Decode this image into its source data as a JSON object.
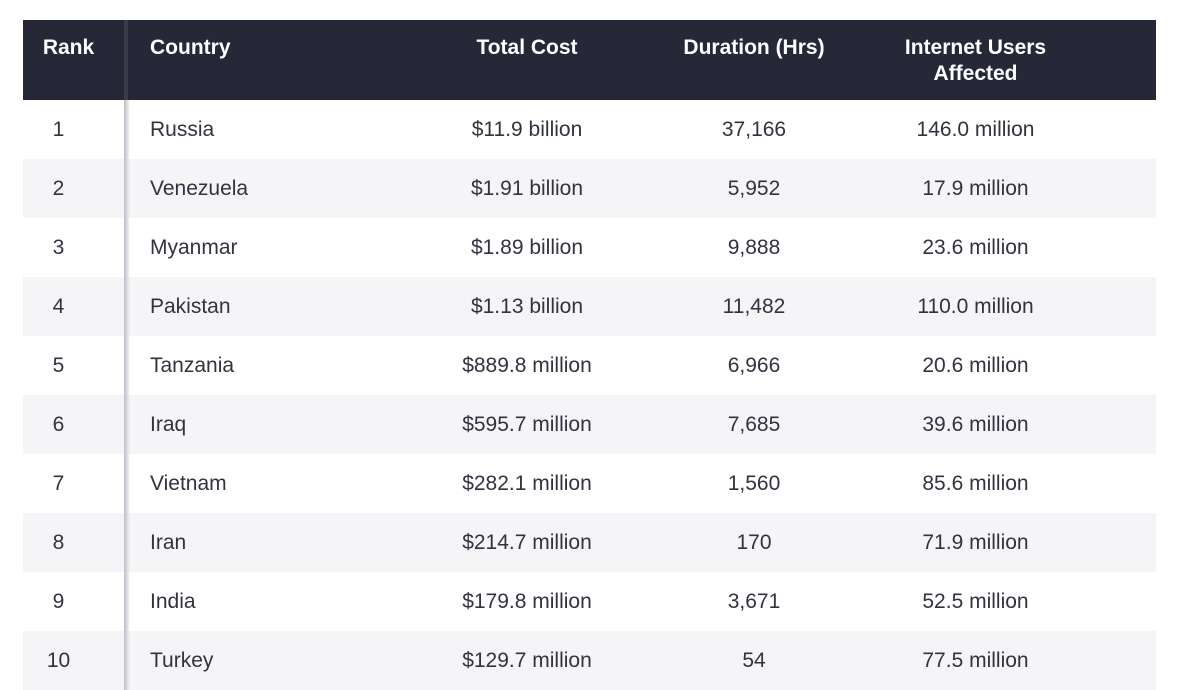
{
  "chart_data": {
    "type": "table",
    "columns": [
      "Rank",
      "Country",
      "Total Cost",
      "Duration (Hrs)",
      "Internet Users Affected"
    ],
    "rows": [
      {
        "rank": "1",
        "country": "Russia",
        "total_cost": "$11.9 billion",
        "duration_hrs": "37,166",
        "internet_users_affected": "146.0 million"
      },
      {
        "rank": "2",
        "country": "Venezuela",
        "total_cost": "$1.91 billion",
        "duration_hrs": "5,952",
        "internet_users_affected": "17.9 million"
      },
      {
        "rank": "3",
        "country": "Myanmar",
        "total_cost": "$1.89 billion",
        "duration_hrs": "9,888",
        "internet_users_affected": "23.6 million"
      },
      {
        "rank": "4",
        "country": "Pakistan",
        "total_cost": "$1.13 billion",
        "duration_hrs": "11,482",
        "internet_users_affected": "110.0 million"
      },
      {
        "rank": "5",
        "country": "Tanzania",
        "total_cost": "$889.8 million",
        "duration_hrs": "6,966",
        "internet_users_affected": "20.6 million"
      },
      {
        "rank": "6",
        "country": "Iraq",
        "total_cost": "$595.7 million",
        "duration_hrs": "7,685",
        "internet_users_affected": "39.6 million"
      },
      {
        "rank": "7",
        "country": "Vietnam",
        "total_cost": "$282.1 million",
        "duration_hrs": "1,560",
        "internet_users_affected": "85.6 million"
      },
      {
        "rank": "8",
        "country": "Iran",
        "total_cost": "$214.7 million",
        "duration_hrs": "170",
        "internet_users_affected": "71.9 million"
      },
      {
        "rank": "9",
        "country": "India",
        "total_cost": "$179.8 million",
        "duration_hrs": "3,671",
        "internet_users_affected": "52.5 million"
      },
      {
        "rank": "10",
        "country": "Turkey",
        "total_cost": "$129.7 million",
        "duration_hrs": "54",
        "internet_users_affected": "77.5 million"
      }
    ]
  },
  "colors": {
    "header_bg": "#262838",
    "header_text": "#ffffff",
    "body_text": "#31333e",
    "row_alt_bg": "#f5f5f7"
  }
}
